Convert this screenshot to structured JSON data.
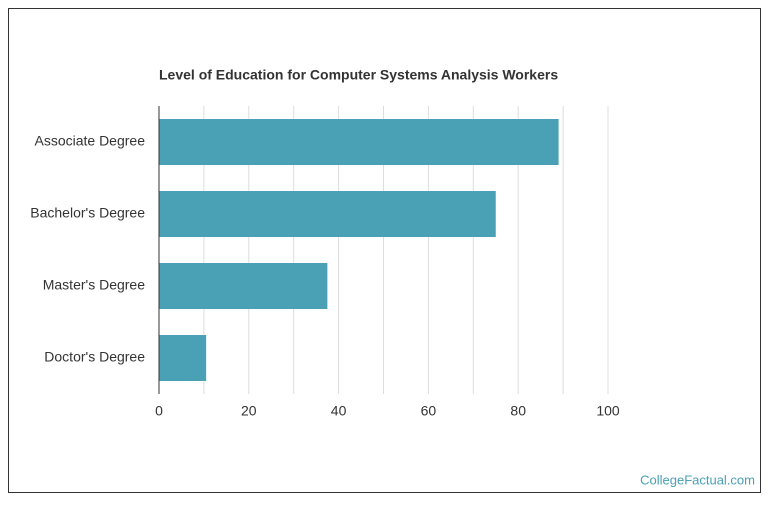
{
  "chart_data": {
    "type": "bar",
    "orientation": "horizontal",
    "title": "Level of Education for Computer Systems Analysis Workers",
    "categories": [
      "Associate Degree",
      "Bachelor's Degree",
      "Master's Degree",
      "Doctor's Degree"
    ],
    "values": [
      89,
      75,
      37.5,
      10.5
    ],
    "color": "#4aa0b5",
    "xlim": [
      0,
      100
    ],
    "xticks": [
      0,
      20,
      40,
      60,
      80,
      100
    ],
    "xgrid": [
      10,
      20,
      30,
      40,
      50,
      60,
      70,
      80,
      90,
      100
    ],
    "grid": true
  },
  "watermark": "CollegeFactual.com"
}
